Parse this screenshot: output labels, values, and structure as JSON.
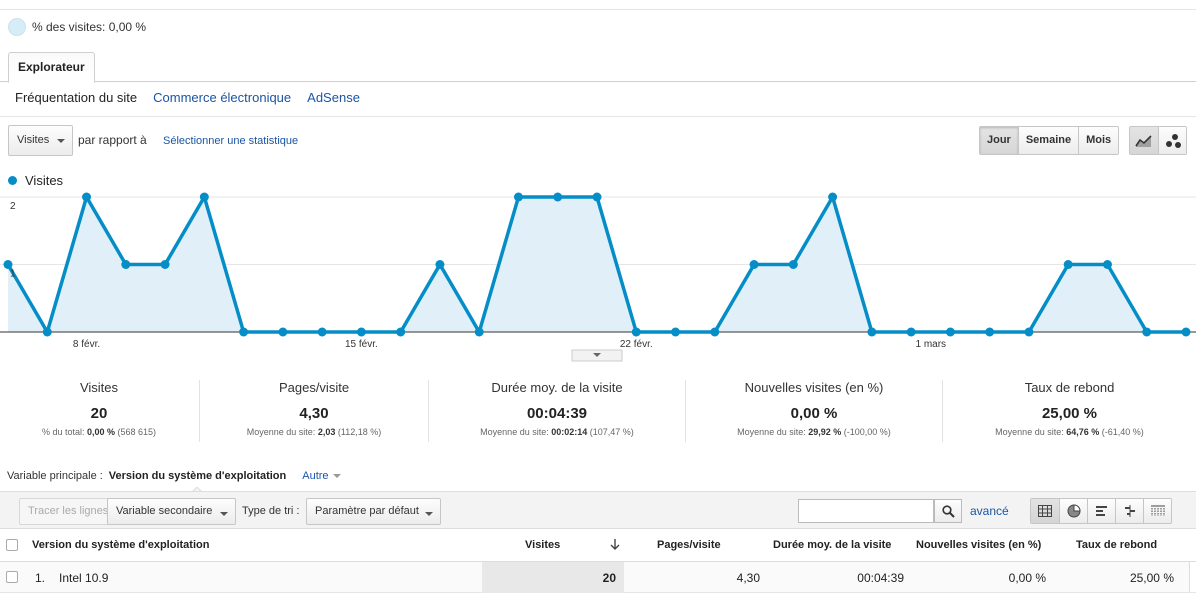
{
  "segment": {
    "pct_text": "% des visites: 0,00 %"
  },
  "tabs": [
    {
      "label": "Explorateur"
    }
  ],
  "subnav": [
    {
      "label": "Fréquentation du site",
      "active": true
    },
    {
      "label": "Commerce électronique",
      "active": false
    },
    {
      "label": "AdSense",
      "active": false
    }
  ],
  "controls": {
    "metric_select": "Visites",
    "compare_label": "par rapport à",
    "select_stat": "Sélectionner une statistique",
    "periods": [
      {
        "label": "Jour",
        "active": true
      },
      {
        "label": "Semaine",
        "active": false
      },
      {
        "label": "Mois",
        "active": false
      }
    ],
    "view_icons": [
      "line-chart-icon",
      "motion-chart-icon"
    ]
  },
  "chart_data": {
    "type": "area",
    "series": [
      {
        "name": "Visites",
        "values": [
          1,
          0,
          2,
          1,
          1,
          2,
          0,
          0,
          0,
          0,
          0,
          1,
          0,
          2,
          2,
          2,
          0,
          0,
          0,
          1,
          1,
          2,
          0,
          0,
          0,
          0,
          0,
          1,
          1,
          0,
          0
        ]
      }
    ],
    "y_ticks": [
      "1",
      "2"
    ],
    "x_tick_labels": [
      {
        "label": "8 févr.",
        "index": 2
      },
      {
        "label": "15 févr.",
        "index": 9
      },
      {
        "label": "22 févr.",
        "index": 16
      },
      {
        "label": "1 mars",
        "index": 23.5
      }
    ],
    "ylim": [
      0,
      2
    ],
    "colors": {
      "line": "#058dc7",
      "fill": "#e1f0f8",
      "grid": "#e6e6e6"
    },
    "legend": "top-left"
  },
  "metrics": [
    {
      "name": "Visites",
      "value": "20",
      "sub_label": "% du total:",
      "sub_value": "0,00 %",
      "sub_extra": "(568 615)"
    },
    {
      "name": "Pages/visite",
      "value": "4,30",
      "sub_label": "Moyenne du site:",
      "sub_value": "2,03",
      "sub_extra": "(112,18 %)"
    },
    {
      "name": "Durée moy. de la visite",
      "value": "00:04:39",
      "sub_label": "Moyenne du site:",
      "sub_value": "00:02:14",
      "sub_extra": "(107,47 %)"
    },
    {
      "name": "Nouvelles visites (en %)",
      "value": "0,00 %",
      "sub_label": "Moyenne du site:",
      "sub_value": "29,92 %",
      "sub_extra": "(-100,00 %)"
    },
    {
      "name": "Taux de rebond",
      "value": "25,00 %",
      "sub_label": "Moyenne du site:",
      "sub_value": "64,76 %",
      "sub_extra": "(-61,40 %)"
    }
  ],
  "primary_var": {
    "label": "Variable principale :",
    "current": "Version du système d'exploitation",
    "other": "Autre"
  },
  "toolbar": {
    "plot_rows": "Tracer les lignes",
    "secondary_var": "Variable secondaire",
    "sort_label": "Type de tri :",
    "sort_value": "Paramètre par défaut",
    "search_value": "",
    "advanced": "avancé",
    "view_icons": [
      "table-icon",
      "pie-icon",
      "bar-icon",
      "comparison-icon",
      "pivot-icon"
    ]
  },
  "table": {
    "headers": [
      "Version du système d'exploitation",
      "Visites",
      "Pages/visite",
      "Durée moy. de la visite",
      "Nouvelles visites (en %)",
      "Taux de rebond"
    ],
    "rows": [
      {
        "index": "1.",
        "os": "Intel 10.9",
        "visits": "20",
        "pages": "4,30",
        "duration": "00:04:39",
        "new_visits": "0,00 %",
        "bounce": "25,00 %"
      }
    ]
  }
}
